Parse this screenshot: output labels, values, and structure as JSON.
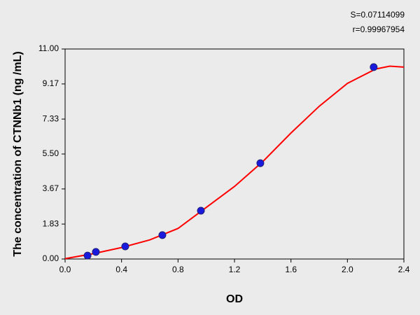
{
  "chart_data": {
    "type": "scatter",
    "annotations": [
      "S=0.07114099",
      "r=0.99967954"
    ],
    "x_label": "OD",
    "y_label": "The concentration of  CTNNb1 (ng /mL)",
    "xlim": [
      0,
      2.4
    ],
    "xticks": [
      {
        "value": 0,
        "label": "0.0"
      },
      0.4,
      0.8,
      1.2,
      1.6,
      {
        "value": 2,
        "label": "2.0"
      },
      2.4
    ],
    "ylim": [
      0,
      11
    ],
    "yticks": [
      {
        "value": 0,
        "label": "0.00"
      },
      1.83,
      3.67,
      {
        "value": 5.5,
        "label": "5.50"
      },
      7.33,
      9.17,
      {
        "value": 11,
        "label": "11.00"
      }
    ],
    "series": [
      {
        "type": "scatter",
        "color": "#1a1adf",
        "x": [
          0.159,
          0.218,
          0.426,
          0.689,
          0.962,
          1.383,
          2.186
        ],
        "values": [
          0.18,
          0.37,
          0.66,
          1.25,
          2.53,
          5.02,
          10.05
        ]
      },
      {
        "type": "line",
        "color": "#ff0000",
        "x": [
          0,
          0.2,
          0.4,
          0.6,
          0.8,
          1.0,
          1.2,
          1.4,
          1.6,
          1.8,
          2.0,
          2.2,
          2.3,
          2.4
        ],
        "values": [
          0.02,
          0.28,
          0.6,
          1.0,
          1.6,
          2.7,
          3.8,
          5.1,
          6.6,
          8.0,
          9.2,
          9.95,
          10.1,
          10.05
        ]
      }
    ]
  }
}
